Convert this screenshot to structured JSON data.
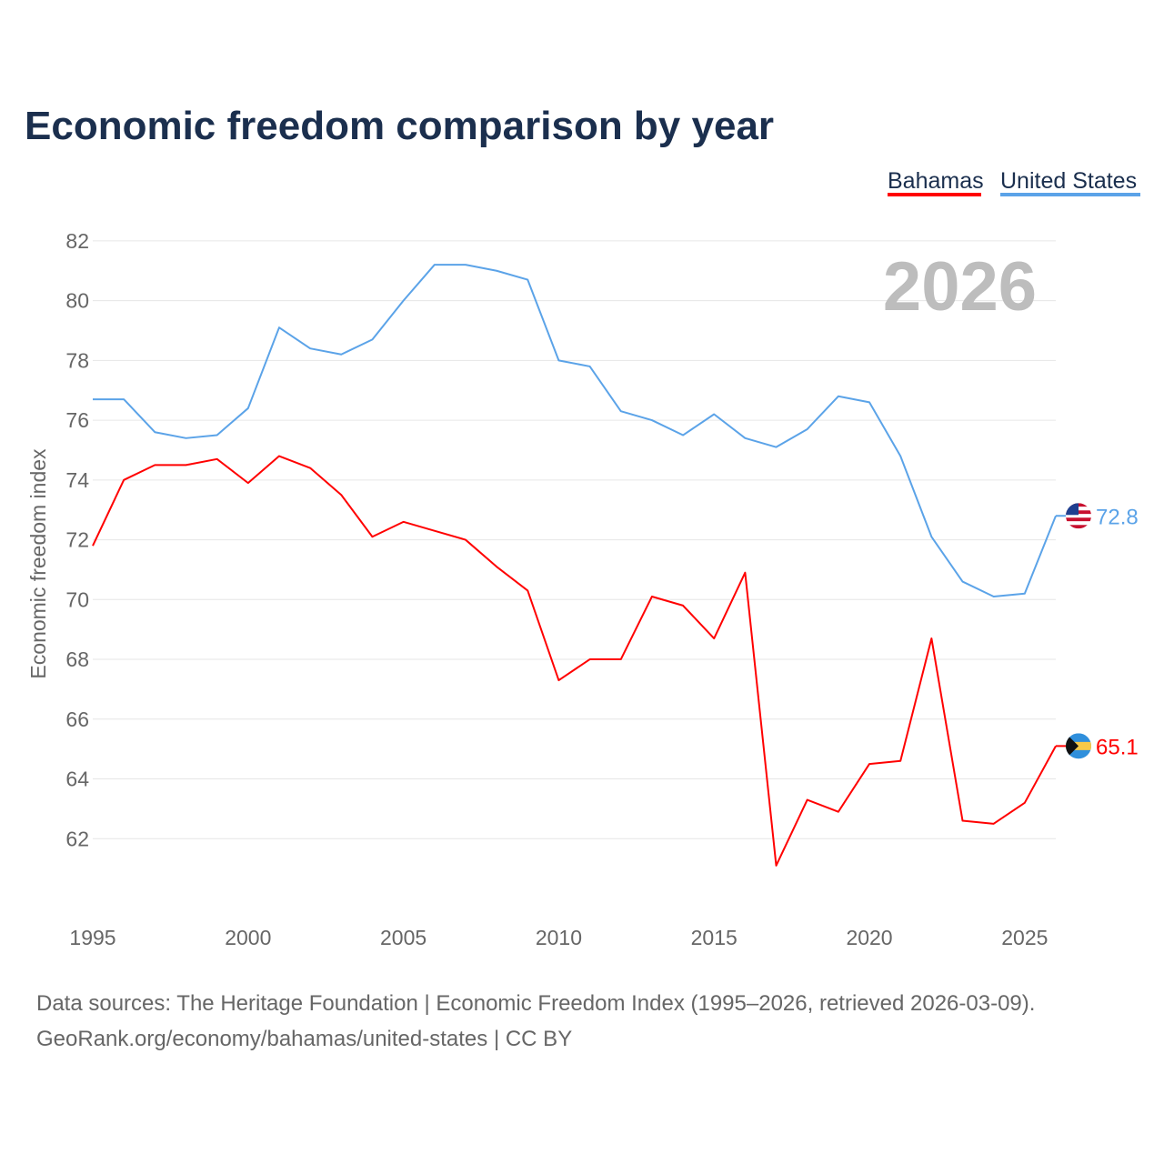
{
  "chart_data": {
    "type": "line",
    "title": "Economic freedom comparison by year",
    "ylabel": "Economic freedom index",
    "xlabel": "",
    "ylim": [
      60,
      83
    ],
    "xlim": [
      1995,
      2026
    ],
    "yticks": [
      62,
      64,
      66,
      68,
      70,
      72,
      74,
      76,
      78,
      80,
      82
    ],
    "xticks": [
      1995,
      2000,
      2005,
      2010,
      2015,
      2020,
      2025
    ],
    "grid": true,
    "legend_position": "top-right",
    "current_year_label": "2026",
    "x": [
      1995,
      1996,
      1997,
      1998,
      1999,
      2000,
      2001,
      2002,
      2003,
      2004,
      2005,
      2006,
      2007,
      2008,
      2009,
      2010,
      2011,
      2012,
      2013,
      2014,
      2015,
      2016,
      2017,
      2018,
      2019,
      2020,
      2021,
      2022,
      2023,
      2024,
      2025,
      2026
    ],
    "series": [
      {
        "name": "Bahamas",
        "color": "#ff0000",
        "end_label": "65.1",
        "flag": "bahamas-flag",
        "values": [
          71.8,
          74.0,
          74.5,
          74.5,
          74.7,
          73.9,
          74.8,
          74.4,
          73.5,
          72.1,
          72.6,
          72.3,
          72.0,
          71.1,
          70.3,
          67.3,
          68.0,
          68.0,
          70.1,
          69.8,
          68.7,
          70.9,
          61.1,
          63.3,
          62.9,
          64.5,
          64.6,
          68.7,
          62.6,
          62.5,
          63.2,
          65.1
        ]
      },
      {
        "name": "United States",
        "color": "#5ba3e8",
        "end_label": "72.8",
        "flag": "us-flag",
        "values": [
          76.7,
          76.7,
          75.6,
          75.4,
          75.5,
          76.4,
          79.1,
          78.4,
          78.2,
          78.7,
          80.0,
          81.2,
          81.2,
          81.0,
          80.7,
          78.0,
          77.8,
          76.3,
          76.0,
          75.5,
          76.2,
          75.4,
          75.1,
          75.7,
          76.8,
          76.6,
          74.8,
          72.1,
          70.6,
          70.1,
          70.2,
          72.8
        ]
      }
    ]
  },
  "footer": {
    "line1": "Data sources: The Heritage Foundation | Economic Freedom Index (1995–2026, retrieved 2026-03-09).",
    "line2": "GeoRank.org/economy/bahamas/united-states | CC BY"
  }
}
